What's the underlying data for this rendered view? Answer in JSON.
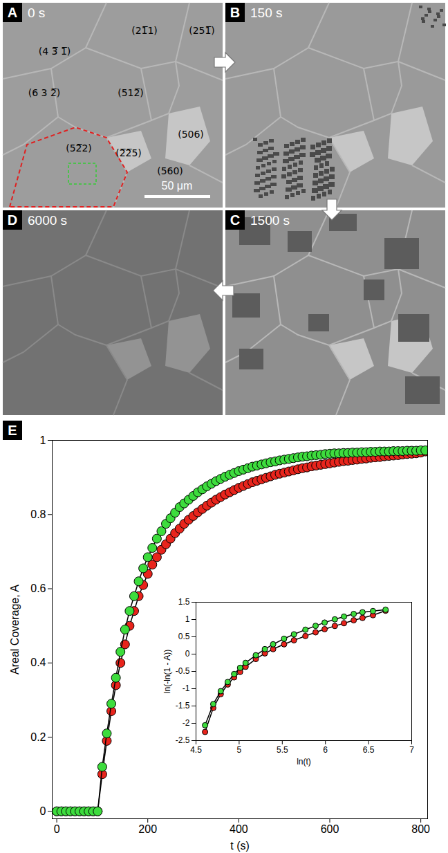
{
  "images": {
    "panels": [
      {
        "letter": "A",
        "time": "0 s"
      },
      {
        "letter": "B",
        "time": "150 s"
      },
      {
        "letter": "C",
        "time": "1500 s"
      },
      {
        "letter": "D",
        "time": "6000 s"
      }
    ],
    "grain_labels": [
      "(4 3̅ 1̅)",
      "(21̅1)",
      "(251̅)",
      "(6 3 2̅)",
      "(512̅)",
      "(506)",
      "(52̅2)",
      "(2̅2̅5)",
      "(560)"
    ],
    "scale_bar": "50 μm"
  },
  "chart_data": [
    {
      "panel": "E",
      "type": "line",
      "marker": "circle",
      "x_label": "t (s)",
      "y_label": "Areal Coverage, A",
      "x": [
        0,
        10,
        20,
        30,
        40,
        50,
        60,
        70,
        80,
        90,
        100,
        110,
        120,
        130,
        140,
        150,
        160,
        170,
        180,
        190,
        200,
        210,
        220,
        230,
        240,
        250,
        260,
        270,
        280,
        290,
        300,
        310,
        320,
        330,
        340,
        350,
        360,
        370,
        380,
        390,
        400,
        410,
        420,
        430,
        440,
        450,
        460,
        470,
        480,
        490,
        500,
        510,
        520,
        530,
        540,
        550,
        560,
        570,
        580,
        590,
        600,
        610,
        620,
        630,
        640,
        650,
        660,
        670,
        680,
        690,
        700,
        710,
        720,
        730,
        740,
        750,
        760,
        770,
        780,
        790,
        800,
        810
      ],
      "series": [
        {
          "color": "#e8241c",
          "values": [
            0,
            0,
            0,
            0,
            0,
            0,
            0,
            0,
            0,
            0,
            0.1,
            0.19,
            0.27,
            0.34,
            0.4,
            0.45,
            0.5,
            0.54,
            0.58,
            0.61,
            0.64,
            0.665,
            0.685,
            0.705,
            0.72,
            0.735,
            0.75,
            0.762,
            0.775,
            0.786,
            0.796,
            0.806,
            0.815,
            0.824,
            0.832,
            0.84,
            0.847,
            0.854,
            0.86,
            0.866,
            0.872,
            0.877,
            0.882,
            0.887,
            0.891,
            0.895,
            0.899,
            0.903,
            0.907,
            0.91,
            0.913,
            0.916,
            0.919,
            0.922,
            0.925,
            0.927,
            0.93,
            0.932,
            0.934,
            0.936,
            0.938,
            0.94,
            0.942,
            0.944,
            0.945,
            0.947,
            0.948,
            0.95,
            0.951,
            0.953,
            0.954,
            0.955,
            0.957,
            0.958,
            0.959,
            0.96,
            0.962,
            0.963,
            0.964,
            0.965,
            0.967,
            0.97
          ]
        },
        {
          "color": "#3ddc3d",
          "values": [
            0,
            0,
            0,
            0,
            0,
            0,
            0,
            0,
            0,
            0,
            0.12,
            0.21,
            0.29,
            0.36,
            0.43,
            0.49,
            0.54,
            0.58,
            0.62,
            0.655,
            0.685,
            0.71,
            0.735,
            0.755,
            0.775,
            0.79,
            0.805,
            0.82,
            0.83,
            0.84,
            0.85,
            0.86,
            0.868,
            0.876,
            0.883,
            0.89,
            0.896,
            0.902,
            0.907,
            0.912,
            0.917,
            0.921,
            0.925,
            0.929,
            0.932,
            0.935,
            0.938,
            0.941,
            0.943,
            0.946,
            0.948,
            0.95,
            0.952,
            0.954,
            0.956,
            0.957,
            0.959,
            0.96,
            0.961,
            0.963,
            0.964,
            0.965,
            0.965,
            0.966,
            0.966,
            0.967,
            0.967,
            0.968,
            0.968,
            0.969,
            0.969,
            0.97,
            0.97,
            0.97,
            0.971,
            0.971,
            0.971,
            0.972,
            0.972,
            0.972,
            0.973,
            0.973
          ]
        }
      ],
      "xlim": [
        -10,
        815
      ],
      "xticks": [
        0,
        200,
        400,
        600,
        800
      ],
      "ylim": [
        -0.02,
        1
      ],
      "yticks": [
        0,
        0.2,
        0.4,
        0.6,
        0.8,
        1
      ],
      "grid": false
    },
    {
      "type": "line",
      "marker": "circle",
      "x_label": "ln(t)",
      "y_label": "ln(-ln(1 - A))",
      "x": [
        4.605,
        4.7,
        4.787,
        4.868,
        4.942,
        5.011,
        5.075,
        5.193,
        5.298,
        5.394,
        5.521,
        5.635,
        5.768,
        5.886,
        5.991,
        6.109,
        6.215,
        6.328,
        6.43,
        6.551,
        6.697
      ],
      "series": [
        {
          "color": "#e8241c",
          "values": [
            -2.25,
            -1.557,
            -1.156,
            -0.878,
            -0.672,
            -0.514,
            -0.367,
            -0.142,
            0.021,
            0.144,
            0.284,
            0.4,
            0.523,
            0.63,
            0.721,
            0.813,
            0.893,
            0.978,
            1.046,
            1.125,
            1.255
          ]
        },
        {
          "color": "#3ddc3d",
          "values": [
            -2.057,
            -1.445,
            -1.071,
            -0.807,
            -0.576,
            -0.396,
            -0.253,
            -0.033,
            0.144,
            0.284,
            0.445,
            0.572,
            0.706,
            0.817,
            0.912,
            1.005,
            1.084,
            1.161,
            1.21,
            1.245,
            1.284
          ]
        }
      ],
      "xlim": [
        4.5,
        7
      ],
      "xticks": [
        4.5,
        5,
        5.5,
        6,
        6.5,
        7
      ],
      "ylim": [
        -2.5,
        1.5
      ],
      "yticks": [
        -2.5,
        -2,
        -1.5,
        -1,
        -0.5,
        0,
        0.5,
        1,
        1.5
      ],
      "grid": false
    }
  ]
}
